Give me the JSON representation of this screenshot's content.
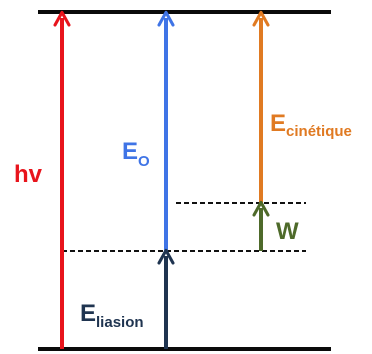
{
  "labels": {
    "hv": "hv",
    "e0_main": "E",
    "e0_sub": "O",
    "ekin_main": "E",
    "ekin_sub": "cinétique",
    "w": "W",
    "eliaison_main": "E",
    "eliaison_sub": "liasion"
  },
  "colors": {
    "red": "#e8141c",
    "blue": "#3f74e6",
    "orange": "#e07a22",
    "green": "#4e6a2a",
    "navy": "#1f3450",
    "level_line": "#0a0a0a",
    "dashed_line": "#111111"
  }
}
